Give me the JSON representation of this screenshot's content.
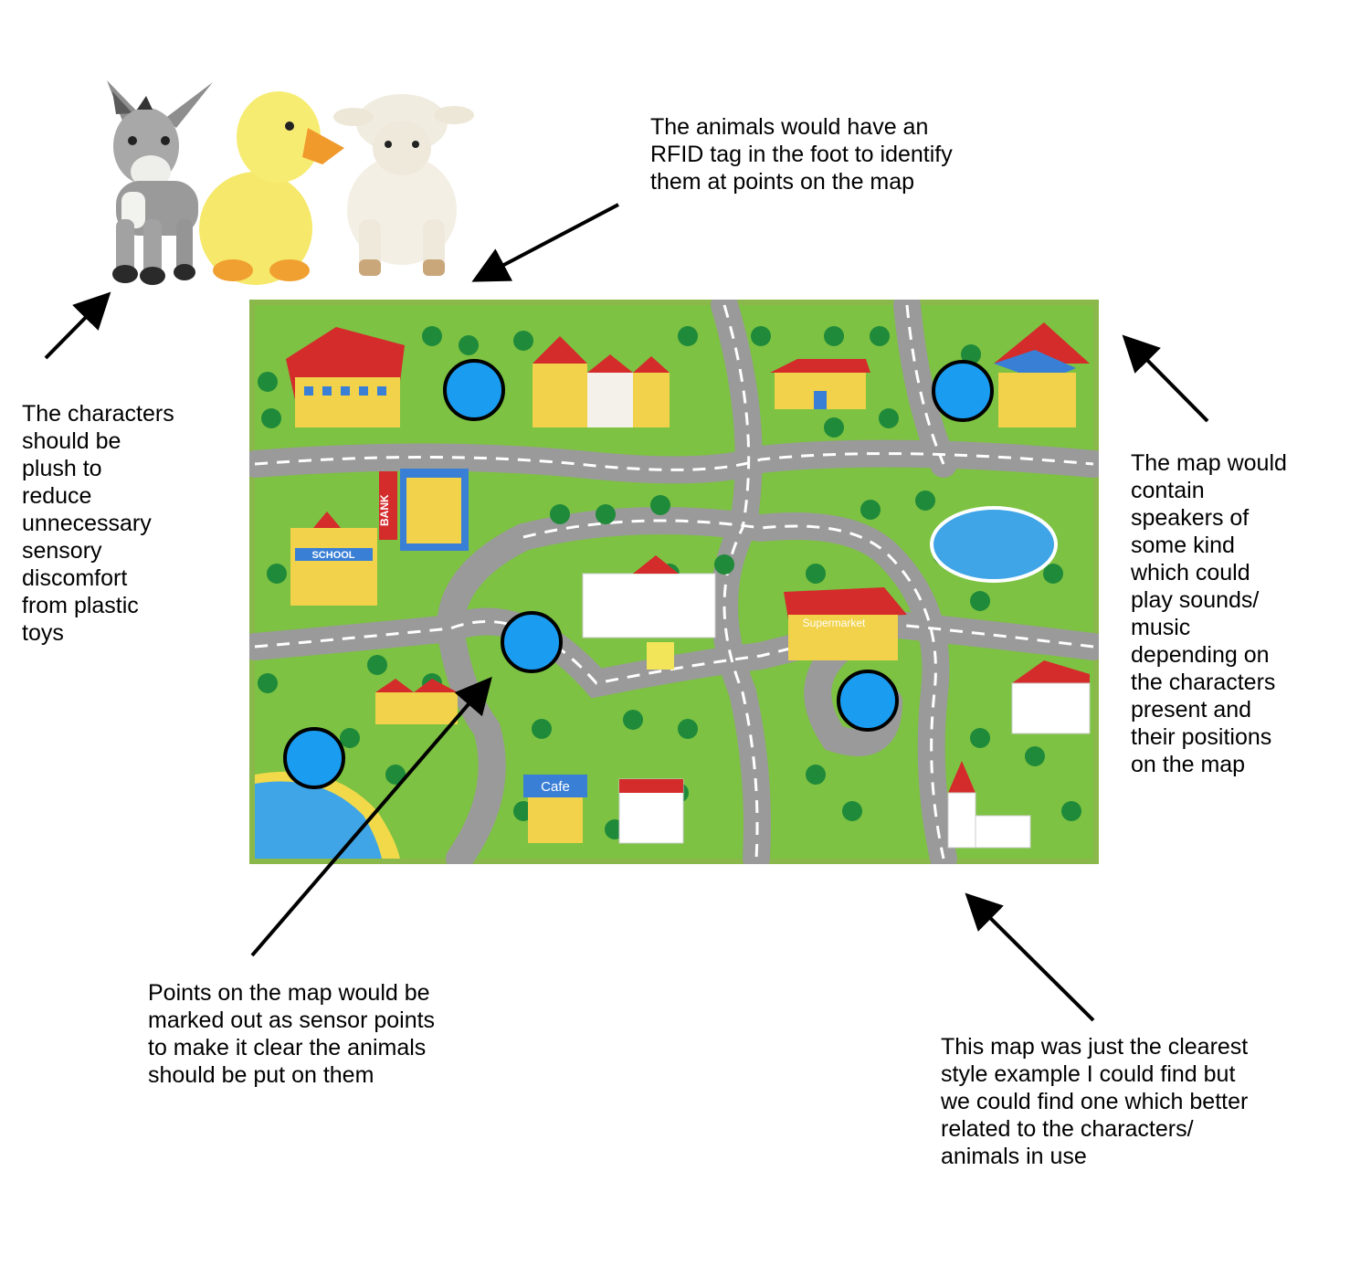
{
  "notes": {
    "plush": "The characters\nshould be\nplush to\nreduce\nunnecessary\nsensory\ndiscomfort\nfrom plastic\ntoys",
    "rfid": "The animals would have an\nRFID tag in the foot to identify\nthem at points on the map",
    "speakers": "The map would\ncontain\nspeakers of\nsome kind\nwhich could\nplay sounds/\nmusic\ndepending on\nthe characters\npresent and\ntheir positions\non the map",
    "sensor": "Points on the map would be\nmarked out as sensor points\nto make it clear the animals\nshould be put on them",
    "style": "This map was just the clearest\nstyle example I could find but\nwe could find one which better\nrelated to the characters/\nanimals in use"
  },
  "map_labels": {
    "bank": "BANK",
    "school": "SCHOOL",
    "supermarket": "Supermarket",
    "cafe": "Cafe"
  },
  "animals": [
    "donkey",
    "duck",
    "lamb"
  ],
  "sensor_point_count": 5,
  "colors": {
    "sensor_fill": "#1a9cf0",
    "sensor_stroke": "#000000",
    "grass": "#7dc242",
    "road": "#9a9a9a",
    "arrow": "#000000"
  }
}
